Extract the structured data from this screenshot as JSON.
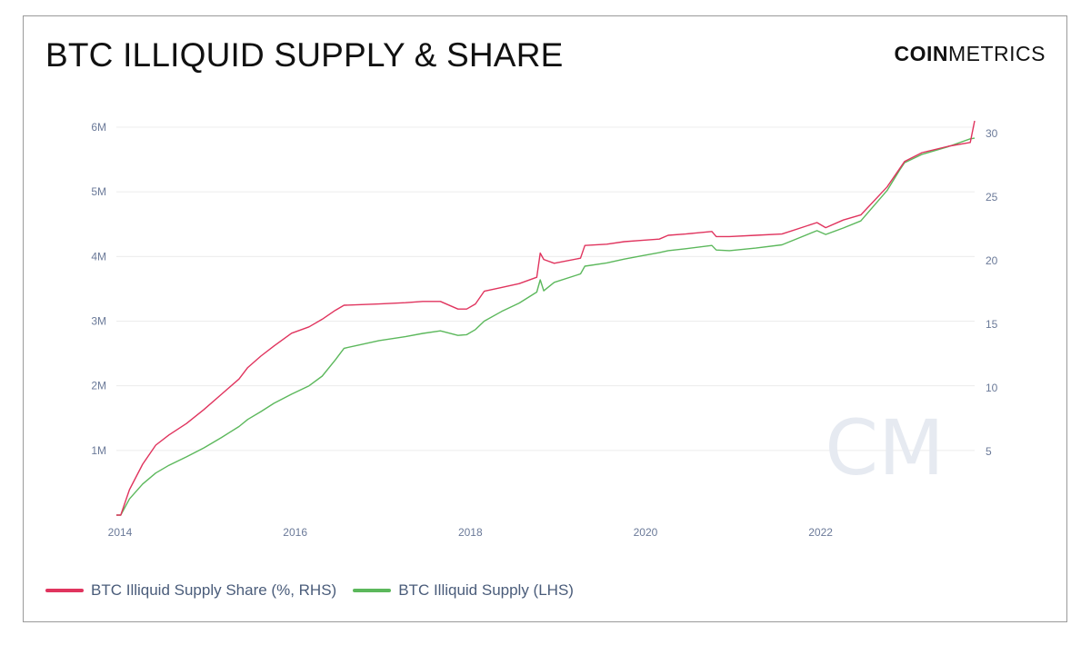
{
  "header": {
    "title": "BTC ILLIQUID SUPPLY & SHARE",
    "brand_bold": "COIN",
    "brand_light": "METRICS"
  },
  "watermark": "CM",
  "colors": {
    "share": "#e0345e",
    "supply": "#5cb85c",
    "axis_text": "#6b7a99",
    "grid": "#ececec"
  },
  "legend": [
    {
      "label": "BTC Illiquid Supply Share (%, RHS)",
      "color": "#e0345e"
    },
    {
      "label": "BTC Illiquid Supply (LHS)",
      "color": "#5cb85c"
    }
  ],
  "chart_data": {
    "type": "line",
    "title": "BTC ILLIQUID SUPPLY & SHARE",
    "xlabel": "",
    "ylabel_left": "",
    "ylabel_right": "",
    "x_ticks": [
      "2014",
      "2016",
      "2018",
      "2020",
      "2022"
    ],
    "x_tick_values": [
      2014,
      2016,
      2018,
      2020,
      2022
    ],
    "y_left_ticks": [
      "1M",
      "2M",
      "3M",
      "4M",
      "5M",
      "6M"
    ],
    "y_left_tick_values": [
      1000000,
      2000000,
      3000000,
      4000000,
      5000000,
      6000000
    ],
    "y_right_ticks": [
      "5",
      "10",
      "15",
      "20",
      "25",
      "30"
    ],
    "y_right_tick_values": [
      5,
      10,
      15,
      20,
      25,
      30
    ],
    "xlim": [
      2014,
      2023.8
    ],
    "ylim_left": [
      0,
      6000000
    ],
    "ylim_right": [
      0,
      30.5
    ],
    "grid": true,
    "legend_position": "bottom-left",
    "series": [
      {
        "name": "BTC Illiquid Supply Share (%, RHS)",
        "axis": "right",
        "color": "#e0345e",
        "x": [
          2014.0,
          2014.05,
          2014.15,
          2014.3,
          2014.45,
          2014.6,
          2014.8,
          2015.0,
          2015.2,
          2015.4,
          2015.5,
          2015.65,
          2015.8,
          2016.0,
          2016.2,
          2016.35,
          2016.5,
          2016.6,
          2017.0,
          2017.3,
          2017.5,
          2017.7,
          2017.9,
          2018.0,
          2018.1,
          2018.2,
          2018.4,
          2018.6,
          2018.8,
          2018.84,
          2018.88,
          2019.0,
          2019.3,
          2019.35,
          2019.6,
          2019.8,
          2020.0,
          2020.2,
          2020.3,
          2020.5,
          2020.8,
          2020.85,
          2021.0,
          2021.3,
          2021.6,
          2022.0,
          2022.1,
          2022.3,
          2022.5,
          2022.8,
          2022.95,
          2023.0,
          2023.2,
          2023.5,
          2023.75,
          2023.8
        ],
        "y": [
          0.0,
          0.0,
          2.0,
          4.0,
          5.5,
          6.3,
          7.2,
          8.3,
          9.5,
          10.7,
          11.6,
          12.5,
          13.3,
          14.3,
          14.8,
          15.4,
          16.1,
          16.5,
          16.6,
          16.7,
          16.8,
          16.8,
          16.2,
          16.2,
          16.6,
          17.6,
          17.9,
          18.2,
          18.7,
          20.6,
          20.1,
          19.8,
          20.2,
          21.2,
          21.3,
          21.5,
          21.6,
          21.7,
          22.0,
          22.1,
          22.3,
          21.9,
          21.9,
          22.0,
          22.1,
          23.0,
          22.6,
          23.2,
          23.6,
          25.8,
          27.3,
          27.8,
          28.5,
          29.0,
          29.3,
          31.0
        ]
      },
      {
        "name": "BTC Illiquid Supply (LHS)",
        "axis": "left",
        "color": "#5cb85c",
        "x": [
          2014.0,
          2014.05,
          2014.15,
          2014.3,
          2014.45,
          2014.6,
          2014.8,
          2015.0,
          2015.2,
          2015.4,
          2015.5,
          2015.65,
          2015.8,
          2016.0,
          2016.2,
          2016.35,
          2016.5,
          2016.6,
          2017.0,
          2017.3,
          2017.5,
          2017.7,
          2017.9,
          2018.0,
          2018.1,
          2018.2,
          2018.4,
          2018.6,
          2018.8,
          2018.84,
          2018.88,
          2019.0,
          2019.3,
          2019.35,
          2019.6,
          2019.8,
          2020.0,
          2020.2,
          2020.3,
          2020.5,
          2020.8,
          2020.85,
          2021.0,
          2021.3,
          2021.6,
          2022.0,
          2022.1,
          2022.3,
          2022.5,
          2022.8,
          2022.95,
          2023.0,
          2023.2,
          2023.5,
          2023.75,
          2023.8
        ],
        "y": [
          0,
          0,
          250000,
          480000,
          650000,
          770000,
          900000,
          1040000,
          1200000,
          1370000,
          1480000,
          1600000,
          1730000,
          1870000,
          2000000,
          2150000,
          2400000,
          2580000,
          2700000,
          2760000,
          2810000,
          2850000,
          2780000,
          2790000,
          2870000,
          3000000,
          3150000,
          3280000,
          3450000,
          3640000,
          3470000,
          3600000,
          3730000,
          3850000,
          3900000,
          3960000,
          4010000,
          4060000,
          4090000,
          4120000,
          4170000,
          4100000,
          4090000,
          4130000,
          4180000,
          4400000,
          4340000,
          4440000,
          4550000,
          5020000,
          5350000,
          5450000,
          5580000,
          5700000,
          5820000,
          5830000
        ]
      }
    ]
  }
}
